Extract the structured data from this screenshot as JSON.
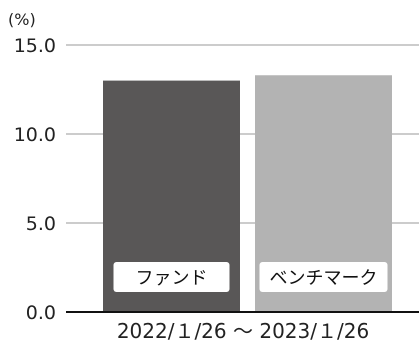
{
  "chart_data": {
    "type": "bar",
    "unit_label": "(%)",
    "categories": [
      "ファンド",
      "ベンチマーク"
    ],
    "values": [
      13.0,
      13.3
    ],
    "colors": [
      "#595757",
      "#b3b3b3"
    ],
    "ylim": [
      0,
      15
    ],
    "yticks": [
      "0.0",
      "5.0",
      "10.0",
      "15.0"
    ],
    "ytick_values": [
      0,
      5,
      10,
      15
    ],
    "period_label": "2022/１/26 ～ 2023/１/26",
    "grid": true
  }
}
